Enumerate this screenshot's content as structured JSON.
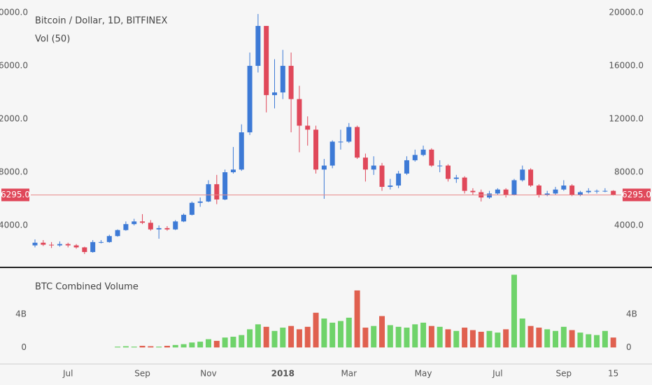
{
  "chart_data": [
    {
      "type": "candlestick",
      "title": "Bitcoin / Dollar, 1D, BITFINEX",
      "subtitle": "Vol (50)",
      "categories": [
        null,
        null,
        null,
        null,
        "Jul",
        null,
        null,
        null,
        null,
        null,
        null,
        null,
        null,
        "Sep",
        null,
        null,
        null,
        null,
        null,
        null,
        null,
        "Nov",
        null,
        null,
        null,
        null,
        null,
        null,
        null,
        null,
        "2018",
        null,
        null,
        null,
        null,
        null,
        null,
        null,
        "Mar",
        null,
        null,
        null,
        null,
        null,
        null,
        null,
        null,
        "May",
        null,
        null,
        null,
        null,
        null,
        null,
        null,
        null,
        "Jul",
        null,
        null,
        null,
        null,
        null,
        null,
        null,
        "Sep",
        null,
        null,
        null,
        null,
        null,
        "15"
      ],
      "up_color": "#3d7ad6",
      "down_color": "#e0485a",
      "open": [
        2500,
        2700,
        2550,
        2500,
        2600,
        2500,
        2350,
        2000,
        2750,
        2750,
        3200,
        3650,
        4100,
        4300,
        4200,
        3700,
        3800,
        3700,
        4300,
        4800,
        5700,
        5800,
        7100,
        5950,
        8000,
        8200,
        11000,
        16000,
        19000,
        13800,
        14000,
        16000,
        13500,
        11500,
        11200,
        8200,
        8500,
        10300,
        10300,
        11400,
        9100,
        8200,
        8500,
        6900,
        7000,
        7900,
        8900,
        9300,
        9700,
        8500,
        8500,
        7500,
        7600,
        6600,
        6500,
        6100,
        6400,
        6700,
        6300,
        7400,
        8200,
        7000,
        6300,
        6400,
        6700,
        7000,
        6300,
        6500,
        6600,
        6600,
        6600
      ],
      "high": [
        2950,
        2900,
        2750,
        2800,
        2700,
        2600,
        2400,
        2900,
        2900,
        3300,
        3700,
        4300,
        4500,
        4850,
        4400,
        4000,
        3950,
        4400,
        4900,
        5800,
        6100,
        7400,
        7800,
        8200,
        9900,
        11600,
        17000,
        19900,
        19000,
        16500,
        17200,
        17000,
        14500,
        12200,
        11500,
        9000,
        10400,
        11200,
        11700,
        11500,
        9400,
        9200,
        8700,
        7500,
        8100,
        9200,
        9700,
        10000,
        9800,
        8900,
        8600,
        7800,
        7700,
        6800,
        6700,
        6600,
        6800,
        6800,
        7500,
        8500,
        8300,
        7100,
        6600,
        6900,
        7400,
        7100,
        6600,
        6800,
        6700,
        6800,
        6650
      ],
      "low": [
        2350,
        2450,
        2300,
        2400,
        2350,
        2250,
        1850,
        1950,
        2650,
        2700,
        3150,
        3600,
        4000,
        4100,
        3600,
        3000,
        3600,
        3650,
        4250,
        4750,
        5400,
        5750,
        5600,
        5900,
        7900,
        8100,
        10800,
        15500,
        12500,
        12800,
        13500,
        11000,
        9500,
        10000,
        7900,
        6000,
        8300,
        9700,
        10200,
        9000,
        7300,
        7800,
        6600,
        6700,
        6800,
        7800,
        8800,
        9200,
        8400,
        8000,
        7300,
        7200,
        6400,
        6300,
        5800,
        6000,
        6300,
        6100,
        6250,
        7300,
        6900,
        6100,
        6200,
        6300,
        6600,
        6200,
        6200,
        6400,
        6400,
        6500,
        6250
      ],
      "close": [
        2700,
        2550,
        2500,
        2600,
        2500,
        2350,
        2000,
        2750,
        2750,
        3200,
        3650,
        4100,
        4300,
        4200,
        3700,
        3800,
        3700,
        4300,
        4800,
        5700,
        5800,
        7100,
        5950,
        8000,
        8200,
        11000,
        16000,
        19000,
        13800,
        14000,
        16000,
        13500,
        11500,
        11200,
        8200,
        8500,
        10300,
        10300,
        11400,
        9100,
        8200,
        8500,
        6900,
        7000,
        7900,
        8900,
        9300,
        9700,
        8500,
        8500,
        7500,
        7600,
        6600,
        6500,
        6100,
        6400,
        6700,
        6300,
        7400,
        8200,
        7000,
        6300,
        6400,
        6700,
        7000,
        6300,
        6500,
        6600,
        6600,
        6600,
        6295
      ],
      "last_price": {
        "value": 6295,
        "label": "6295.0"
      },
      "ylim": [
        950,
        20950
      ],
      "yticks": [
        {
          "value": 4000,
          "label": "4000.0"
        },
        {
          "value": 8000,
          "label": "8000.0"
        },
        {
          "value": 12000,
          "label": "12000.0"
        },
        {
          "value": 16000,
          "label": "16000.0"
        },
        {
          "value": 20000,
          "label": "20000.0"
        }
      ]
    },
    {
      "type": "bar",
      "title": "BTC Combined Volume",
      "up_color": "#6fd36a",
      "down_color": "#e0604f",
      "values": [
        null,
        null,
        null,
        null,
        null,
        null,
        null,
        null,
        null,
        null,
        0.1,
        0.15,
        0.1,
        0.2,
        0.15,
        0.1,
        0.2,
        0.3,
        0.4,
        0.6,
        0.7,
        1.0,
        0.8,
        1.2,
        1.3,
        1.5,
        2.2,
        2.8,
        2.5,
        2.0,
        2.4,
        2.6,
        2.2,
        2.5,
        4.2,
        3.5,
        3.0,
        3.2,
        3.6,
        6.9,
        2.4,
        2.6,
        3.8,
        2.7,
        2.5,
        2.4,
        2.8,
        3.0,
        2.6,
        2.5,
        2.2,
        2.0,
        2.4,
        2.1,
        1.9,
        2.0,
        1.8,
        2.2,
        8.8,
        3.5,
        2.6,
        2.4,
        2.2,
        2.0,
        2.5,
        2.1,
        1.8,
        1.6,
        1.5,
        2.0,
        1.2
      ],
      "ylim": [
        -2,
        9.6
      ],
      "yticks": [
        0,
        {
          "value": 4,
          "label": "4B"
        }
      ]
    }
  ]
}
